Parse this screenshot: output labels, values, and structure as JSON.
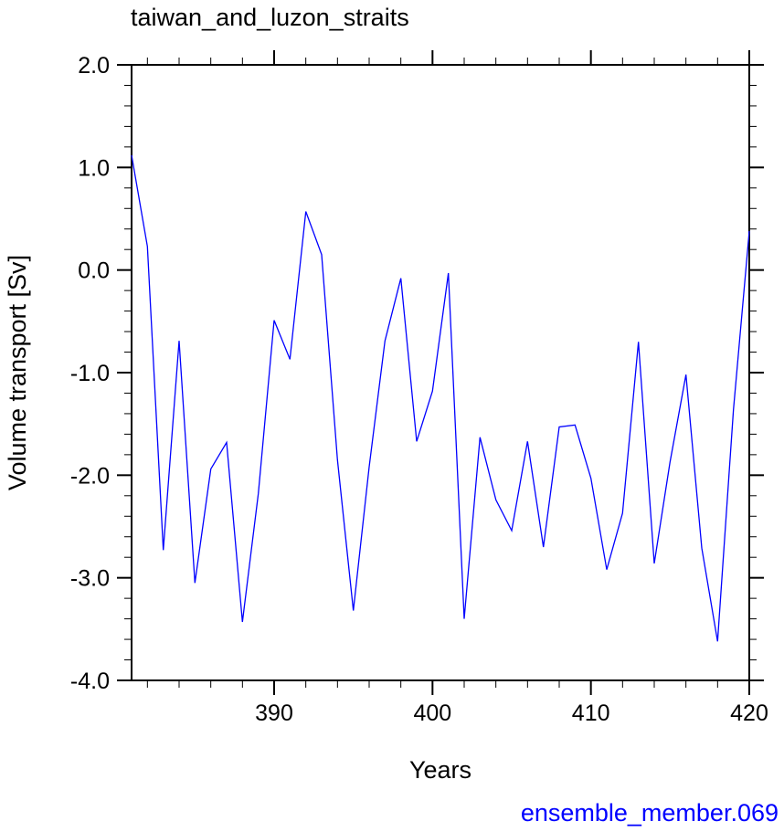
{
  "chart_data": {
    "type": "line",
    "title": "taiwan_and_luzon_straits",
    "subtitle": "ensemble_member.069",
    "xlabel": "Years",
    "ylabel": "Volume transport [Sv]",
    "xlim": [
      381,
      420
    ],
    "ylim": [
      -4.0,
      2.0
    ],
    "x_ticks": [
      390,
      400,
      410,
      420
    ],
    "y_ticks": [
      -4.0,
      -3.0,
      -2.0,
      -1.0,
      0.0,
      1.0,
      2.0
    ],
    "x_tick_labels": [
      "390",
      "400",
      "410",
      "420"
    ],
    "y_tick_labels": [
      "-4.0",
      "-3.0",
      "-2.0",
      "-1.0",
      "0.0",
      "1.0",
      "2.0"
    ],
    "grid": false,
    "series": [
      {
        "color": "#0000ff",
        "x": [
          381,
          382,
          383,
          384,
          385,
          386,
          387,
          388,
          389,
          390,
          391,
          392,
          393,
          394,
          395,
          396,
          397,
          398,
          399,
          400,
          401,
          402,
          403,
          404,
          405,
          406,
          407,
          408,
          409,
          410,
          411,
          412,
          413,
          414,
          415,
          416,
          417,
          418,
          419,
          420
        ],
        "values": [
          1.12,
          0.23,
          -2.73,
          -0.69,
          -3.05,
          -1.94,
          -1.68,
          -3.43,
          -2.18,
          -0.49,
          -0.87,
          0.57,
          0.15,
          -1.85,
          -3.32,
          -1.92,
          -0.69,
          -0.08,
          -1.67,
          -1.18,
          -0.03,
          -3.4,
          -1.63,
          -2.24,
          -2.54,
          -1.67,
          -2.7,
          -1.53,
          -1.51,
          -2.03,
          -2.92,
          -2.37,
          -0.7,
          -2.86,
          -1.87,
          -1.02,
          -2.71,
          -3.62,
          -1.36,
          0.38
        ]
      }
    ]
  }
}
